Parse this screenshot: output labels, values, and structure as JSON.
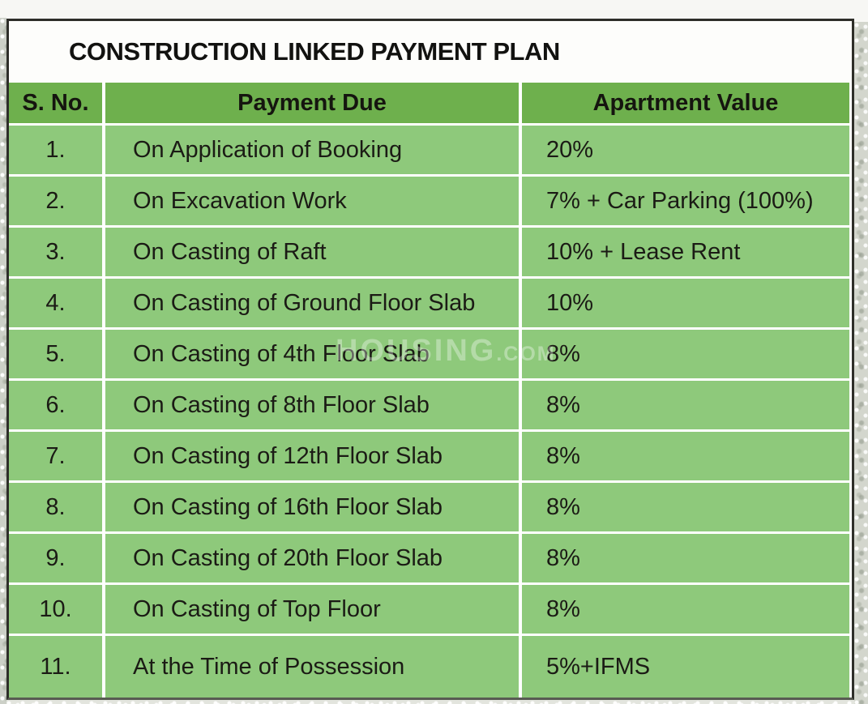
{
  "title": "CONSTRUCTION LINKED PAYMENT PLAN",
  "table": {
    "columns": [
      "S. No.",
      "Payment Due",
      "Apartment Value"
    ],
    "rows": [
      {
        "sno": "1.",
        "due": "On Application of Booking",
        "value": "20%"
      },
      {
        "sno": "2.",
        "due": "On Excavation Work",
        "value": "7% + Car Parking (100%)"
      },
      {
        "sno": "3.",
        "due": "On Casting of Raft",
        "value": "10% + Lease Rent"
      },
      {
        "sno": "4.",
        "due": "On Casting of Ground Floor Slab",
        "value": "10%"
      },
      {
        "sno": "5.",
        "due": "On Casting of 4th Floor Slab",
        "value": "8%"
      },
      {
        "sno": "6.",
        "due": "On Casting of 8th Floor Slab",
        "value": "8%"
      },
      {
        "sno": "7.",
        "due": "On Casting of 12th Floor Slab",
        "value": "8%"
      },
      {
        "sno": "8.",
        "due": "On Casting of 16th Floor Slab",
        "value": "8%"
      },
      {
        "sno": "9.",
        "due": "On Casting of 20th Floor Slab",
        "value": "8%"
      },
      {
        "sno": "10.",
        "due": "On Casting of Top Floor",
        "value": "8%"
      },
      {
        "sno": "11.",
        "due": "At the Time of Possession",
        "value": "5%+IFMS"
      }
    ]
  },
  "watermark": {
    "main": "HOUSI",
    "highlight": "NG",
    "suffix": ".COM"
  },
  "colors": {
    "header_green": "#6eb04d",
    "row_green": "#8ec97b",
    "separator_white": "#ffffff",
    "border_dark": "#2e2e29",
    "text_black": "#1b1b15",
    "page_background": "#f7f7f4"
  },
  "chart_data": {
    "type": "table",
    "title": "CONSTRUCTION LINKED PAYMENT PLAN",
    "columns": [
      "S. No.",
      "Payment Due",
      "Apartment Value"
    ],
    "rows": [
      [
        "1.",
        "On Application of Booking",
        "20%"
      ],
      [
        "2.",
        "On Excavation Work",
        "7% + Car Parking (100%)"
      ],
      [
        "3.",
        "On Casting of Raft",
        "10% + Lease Rent"
      ],
      [
        "4.",
        "On Casting of Ground Floor Slab",
        "10%"
      ],
      [
        "5.",
        "On Casting of 4th Floor Slab",
        "8%"
      ],
      [
        "6.",
        "On Casting of 8th Floor Slab",
        "8%"
      ],
      [
        "7.",
        "On Casting of 12th Floor Slab",
        "8%"
      ],
      [
        "8.",
        "On Casting of 16th Floor Slab",
        "8%"
      ],
      [
        "9.",
        "On Casting of 20th Floor Slab",
        "8%"
      ],
      [
        "10.",
        "On Casting of Top Floor",
        "8%"
      ],
      [
        "11.",
        "At the Time of Possession",
        "5%+IFMS"
      ]
    ]
  }
}
